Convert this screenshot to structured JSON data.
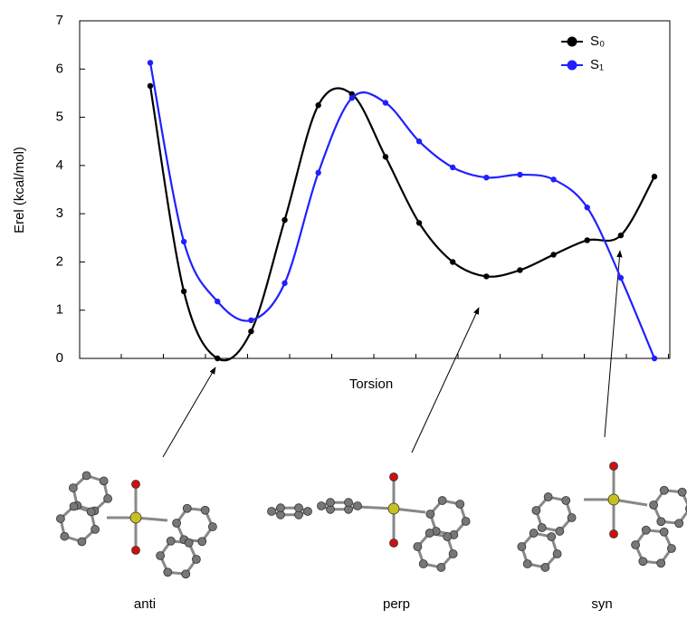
{
  "chart_data": {
    "type": "line",
    "ylabel": "Erel (kcal/mol)",
    "xlabel": "Torsion",
    "categories": [
      null,
      null,
      null,
      null,
      null,
      null,
      null,
      null,
      null,
      null,
      null,
      null,
      null,
      null,
      null,
      null
    ],
    "series": [
      {
        "name": "S₀",
        "color": "#000000",
        "values": [
          5.65,
          1.39,
          0.0,
          0.56,
          2.87,
          5.25,
          5.48,
          4.18,
          2.81,
          2.0,
          1.7,
          1.83,
          2.15,
          2.45,
          2.55,
          3.77
        ]
      },
      {
        "name": "S₁",
        "color": "#2020ff",
        "values": [
          6.13,
          2.42,
          1.18,
          0.79,
          1.56,
          3.85,
          5.4,
          5.3,
          4.5,
          3.96,
          3.75,
          3.81,
          3.71,
          3.13,
          1.67,
          0.0
        ]
      }
    ],
    "ylim": [
      0,
      7
    ],
    "yticks": [
      0,
      1,
      2,
      3,
      4,
      5,
      6,
      7
    ],
    "legend": "upper right",
    "annotations": [
      "anti",
      "perp",
      "syn"
    ]
  }
}
